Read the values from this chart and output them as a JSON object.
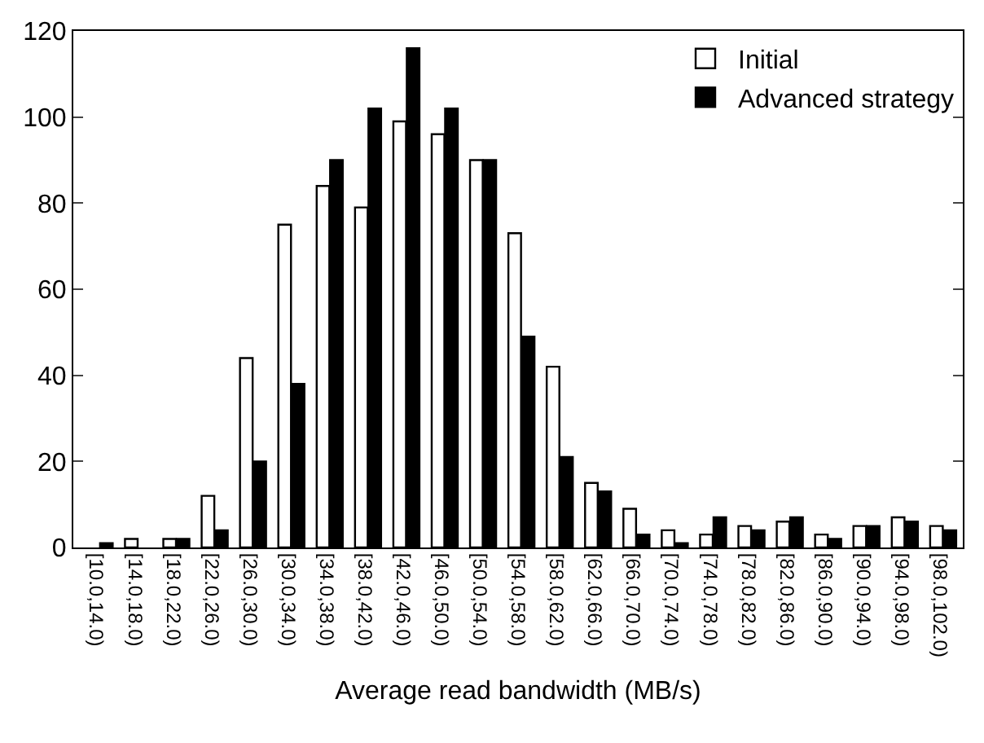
{
  "chart_data": {
    "type": "bar",
    "xlabel": "Average read bandwidth (MB/s)",
    "categories": [
      "[10.0,14.0)",
      "[14.0,18.0)",
      "[18.0,22.0)",
      "[22.0,26.0)",
      "[26.0,30.0)",
      "[30.0,34.0)",
      "[34.0,38.0)",
      "[38.0,42.0)",
      "[42.0,46.0)",
      "[46.0,50.0)",
      "[50.0,54.0)",
      "[54.0,58.0)",
      "[58.0,62.0)",
      "[62.0,66.0)",
      "[66.0,70.0)",
      "[70.0,74.0)",
      "[74.0,78.0)",
      "[78.0,82.0)",
      "[82.0,86.0)",
      "[86.0,90.0)",
      "[90.0,94.0)",
      "[94.0,98.0)",
      "[98.0,102.0)"
    ],
    "series": [
      {
        "name": "Initial",
        "color": "#ffffff",
        "values": [
          0,
          2,
          2,
          12,
          44,
          75,
          84,
          79,
          99,
          96,
          90,
          73,
          42,
          15,
          9,
          4,
          3,
          5,
          6,
          3,
          5,
          7,
          5
        ]
      },
      {
        "name": "Advanced strategy",
        "color": "#000000",
        "values": [
          1,
          0,
          2,
          4,
          20,
          38,
          90,
          102,
          116,
          102,
          90,
          49,
          21,
          13,
          3,
          1,
          7,
          4,
          7,
          2,
          5,
          6,
          4
        ]
      }
    ],
    "ylim": [
      0,
      120
    ],
    "yticks": [
      0,
      20,
      40,
      60,
      80,
      100,
      120
    ],
    "legend": "top right"
  }
}
